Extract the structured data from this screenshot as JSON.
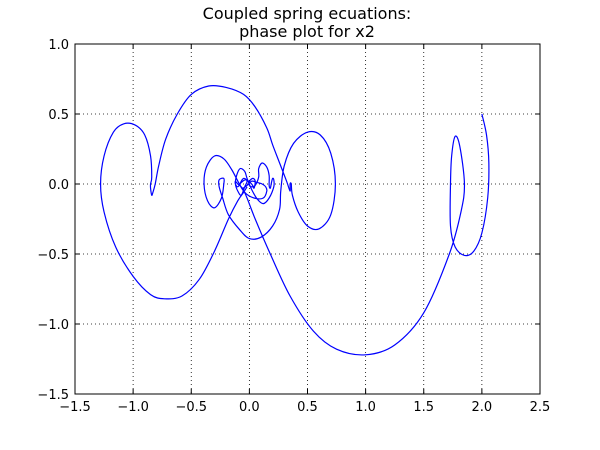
{
  "chart_data": {
    "type": "line",
    "title_lines": [
      "Coupled spring ecuations:",
      "phase plot for x2"
    ],
    "xlabel": "",
    "ylabel": "",
    "xlim": [
      -1.5,
      2.5
    ],
    "ylim": [
      -1.5,
      1.0
    ],
    "x_ticks": [
      -1.5,
      -1.0,
      -0.5,
      0.0,
      0.5,
      1.0,
      1.5,
      2.0,
      2.5
    ],
    "y_ticks": [
      -1.5,
      -1.0,
      -0.5,
      0.0,
      0.5,
      1.0
    ],
    "x_tick_labels": [
      "−1.5",
      "−1.0",
      "−0.5",
      "0.0",
      "0.5",
      "1.0",
      "1.5",
      "2.0",
      "2.5"
    ],
    "y_tick_labels": [
      "−1.5",
      "−1.0",
      "−0.5",
      "0.0",
      "0.5",
      "1.0"
    ],
    "grid": true,
    "grid_style": "dotted",
    "line_color": "#0000ff",
    "series": [
      {
        "points": [
          [
            2.0,
            0.5
          ],
          [
            2.04,
            0.35
          ],
          [
            2.06,
            0.15
          ],
          [
            2.05,
            -0.1
          ],
          [
            2.0,
            -0.35
          ],
          [
            1.93,
            -0.48
          ],
          [
            1.85,
            -0.51
          ],
          [
            1.77,
            -0.45
          ],
          [
            1.73,
            -0.3
          ],
          [
            1.73,
            0.0
          ],
          [
            1.74,
            0.2
          ],
          [
            1.77,
            0.34
          ],
          [
            1.81,
            0.27
          ],
          [
            1.85,
            0.0
          ],
          [
            1.82,
            -0.2
          ],
          [
            1.72,
            -0.5
          ],
          [
            1.5,
            -0.92
          ],
          [
            1.25,
            -1.15
          ],
          [
            1.0,
            -1.22
          ],
          [
            0.75,
            -1.18
          ],
          [
            0.55,
            -1.05
          ],
          [
            0.35,
            -0.8
          ],
          [
            0.18,
            -0.5
          ],
          [
            0.05,
            -0.25
          ],
          [
            -0.02,
            -0.1
          ],
          [
            -0.06,
            -0.03
          ],
          [
            -0.1,
            0.0
          ],
          [
            -0.12,
            0.02
          ],
          [
            -0.12,
            0.0
          ],
          [
            -0.1,
            -0.02
          ],
          [
            -0.07,
            0.01
          ],
          [
            -0.03,
            0.03
          ],
          [
            0.02,
            0.0
          ],
          [
            0.04,
            -0.03
          ],
          [
            0.05,
            0.02
          ],
          [
            0.03,
            0.04
          ],
          [
            0.0,
            0.02
          ],
          [
            0.0,
            -0.01
          ],
          [
            0.02,
            -0.02
          ],
          [
            0.05,
            -0.01
          ],
          [
            0.08,
            0.05
          ],
          [
            0.08,
            0.11
          ],
          [
            0.11,
            0.15
          ],
          [
            0.15,
            0.12
          ],
          [
            0.17,
            0.06
          ],
          [
            0.17,
            -0.01
          ],
          [
            0.18,
            -0.03
          ],
          [
            0.19,
            0.01
          ],
          [
            0.2,
            0.04
          ],
          [
            0.21,
            0.03
          ],
          [
            0.21,
            -0.02
          ],
          [
            0.17,
            -0.1
          ],
          [
            0.12,
            -0.14
          ],
          [
            0.07,
            -0.11
          ],
          [
            0.02,
            -0.04
          ],
          [
            -0.02,
            0.04
          ],
          [
            -0.04,
            0.09
          ],
          [
            -0.08,
            0.11
          ],
          [
            -0.11,
            0.06
          ],
          [
            -0.12,
            0.0
          ],
          [
            -0.1,
            -0.05
          ],
          [
            -0.07,
            -0.08
          ],
          [
            -0.04,
            -0.02
          ],
          [
            -0.02,
            0.02
          ],
          [
            -0.05,
            0.04
          ],
          [
            -0.08,
            0.0
          ],
          [
            -0.06,
            -0.03
          ],
          [
            -0.02,
            -0.01
          ],
          [
            0.02,
            0.02
          ],
          [
            0.07,
            0.01
          ],
          [
            0.11,
            0.0
          ],
          [
            0.14,
            -0.02
          ],
          [
            0.15,
            -0.05
          ],
          [
            0.12,
            -0.1
          ],
          [
            0.04,
            -0.1
          ],
          [
            -0.05,
            -0.05
          ],
          [
            -0.15,
            0.1
          ],
          [
            -0.22,
            0.18
          ],
          [
            -0.3,
            0.2
          ],
          [
            -0.37,
            0.12
          ],
          [
            -0.39,
            0.0
          ],
          [
            -0.36,
            -0.12
          ],
          [
            -0.3,
            -0.17
          ],
          [
            -0.24,
            -0.1
          ],
          [
            -0.22,
            0.0
          ],
          [
            -0.22,
            0.04
          ],
          [
            -0.26,
            0.03
          ],
          [
            -0.26,
            -0.02
          ],
          [
            -0.23,
            -0.1
          ],
          [
            -0.18,
            -0.22
          ],
          [
            -0.08,
            -0.33
          ],
          [
            0.0,
            -0.39
          ],
          [
            0.1,
            -0.38
          ],
          [
            0.2,
            -0.3
          ],
          [
            0.26,
            -0.18
          ],
          [
            0.27,
            -0.05
          ],
          [
            0.3,
            0.13
          ],
          [
            0.38,
            0.29
          ],
          [
            0.5,
            0.37
          ],
          [
            0.61,
            0.35
          ],
          [
            0.7,
            0.22
          ],
          [
            0.74,
            0.0
          ],
          [
            0.7,
            -0.22
          ],
          [
            0.6,
            -0.32
          ],
          [
            0.5,
            -0.3
          ],
          [
            0.42,
            -0.2
          ],
          [
            0.37,
            -0.08
          ],
          [
            0.36,
            0.0
          ],
          [
            0.35,
            0.0
          ],
          [
            0.35,
            -0.05
          ],
          [
            0.32,
            0.02
          ],
          [
            0.26,
            0.15
          ],
          [
            0.2,
            0.28
          ],
          [
            0.15,
            0.4
          ],
          [
            0.05,
            0.55
          ],
          [
            -0.05,
            0.64
          ],
          [
            -0.2,
            0.69
          ],
          [
            -0.35,
            0.7
          ],
          [
            -0.5,
            0.64
          ],
          [
            -0.62,
            0.5
          ],
          [
            -0.72,
            0.32
          ],
          [
            -0.78,
            0.13
          ],
          [
            -0.81,
            0.0
          ],
          [
            -0.83,
            -0.06
          ],
          [
            -0.84,
            -0.08
          ],
          [
            -0.85,
            -0.03
          ],
          [
            -0.85,
            0.0
          ],
          [
            -0.84,
            0.05
          ],
          [
            -0.85,
            0.2
          ],
          [
            -0.9,
            0.35
          ],
          [
            -0.98,
            0.42
          ],
          [
            -1.08,
            0.43
          ],
          [
            -1.17,
            0.37
          ],
          [
            -1.25,
            0.2
          ],
          [
            -1.28,
            0.0
          ],
          [
            -1.25,
            -0.2
          ],
          [
            -1.15,
            -0.45
          ],
          [
            -1.0,
            -0.66
          ],
          [
            -0.85,
            -0.79
          ],
          [
            -0.73,
            -0.82
          ],
          [
            -0.58,
            -0.8
          ],
          [
            -0.43,
            -0.68
          ],
          [
            -0.3,
            -0.48
          ],
          [
            -0.18,
            -0.25
          ],
          [
            -0.1,
            -0.12
          ],
          [
            -0.05,
            -0.06
          ],
          [
            -0.02,
            -0.02
          ]
        ]
      }
    ]
  }
}
